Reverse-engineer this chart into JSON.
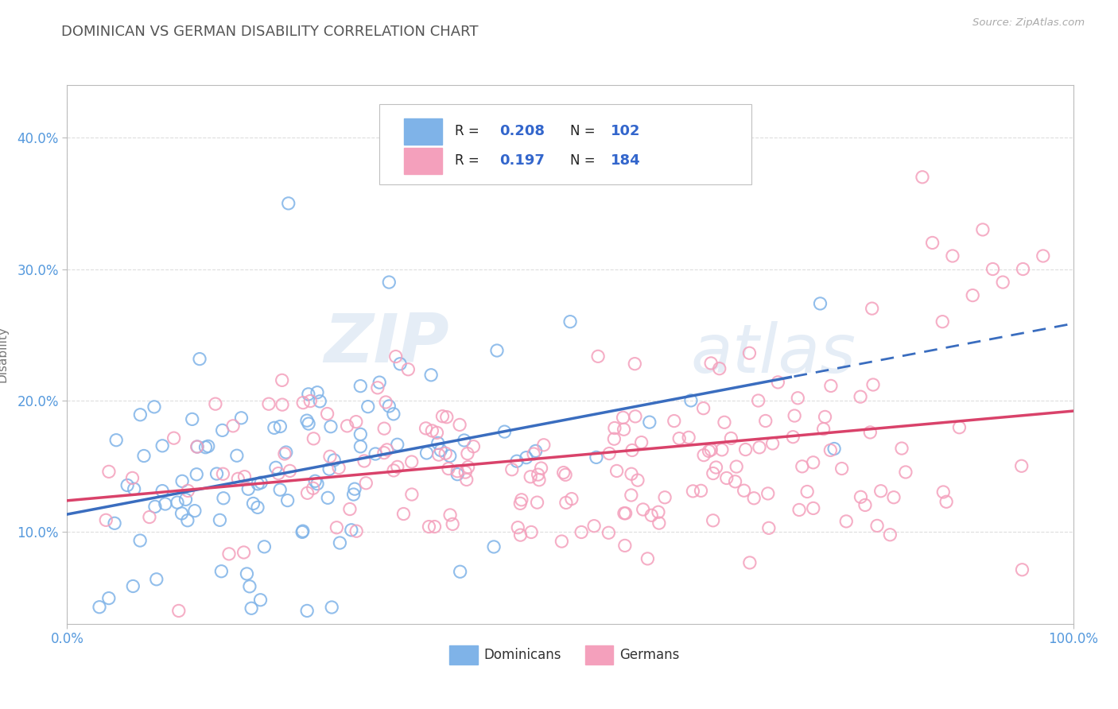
{
  "title": "DOMINICAN VS GERMAN DISABILITY CORRELATION CHART",
  "source": "Source: ZipAtlas.com",
  "ylabel": "Disability",
  "xlim": [
    0.0,
    1.0
  ],
  "ylim": [
    0.03,
    0.44
  ],
  "yticks": [
    0.1,
    0.2,
    0.3,
    0.4
  ],
  "ytick_labels": [
    "10.0%",
    "20.0%",
    "30.0%",
    "40.0%"
  ],
  "xtick_labels": [
    "0.0%",
    "100.0%"
  ],
  "dominican_color": "#7fb3e8",
  "german_color": "#f4a0bc",
  "trend_dominican_color": "#3a6dbf",
  "trend_german_color": "#d9426a",
  "R_dominican": 0.208,
  "N_dominican": 102,
  "R_german": 0.197,
  "N_german": 184,
  "background_color": "#ffffff",
  "grid_color": "#c8c8c8",
  "watermark_zip": "ZIP",
  "watermark_atlas": "atlas",
  "title_color": "#555555",
  "source_color": "#aaaaaa",
  "tick_color": "#5599dd",
  "legend_text_color": "#222222",
  "legend_value_color": "#3366cc"
}
